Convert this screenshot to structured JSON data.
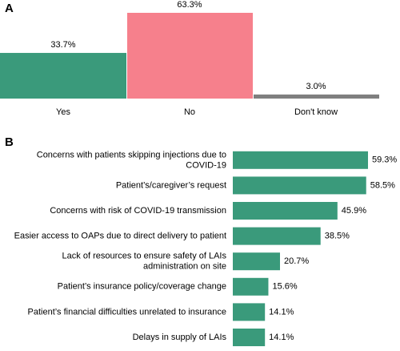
{
  "chart_data": [
    {
      "type": "bar",
      "panel_label": "A",
      "categories": [
        "Yes",
        "No",
        "Don't know"
      ],
      "values": [
        33.7,
        63.3,
        3.0
      ],
      "value_labels": [
        "33.7%",
        "63.3%",
        "3.0%"
      ],
      "colors": [
        "#3a9a7b",
        "#f6808c",
        "#7f7f7f"
      ]
    },
    {
      "type": "hbar",
      "panel_label": "B",
      "categories": [
        "Concerns with patients skipping injections due to\nCOVID-19",
        "Patient’s/caregiver’s request",
        "Concerns with risk of COVID-19 transmission",
        "Easier access to OAPs due to direct delivery to patient",
        "Lack of resources to ensure safety of LAIs\nadministration on site",
        "Patient’s insurance policy/coverage change",
        "Patient’s financial difficulties unrelated to insurance",
        "Delays in supply of LAIs"
      ],
      "values": [
        59.3,
        58.5,
        45.9,
        38.5,
        20.7,
        15.6,
        14.1,
        14.1
      ],
      "value_labels": [
        "59.3%",
        "58.5%",
        "45.9%",
        "38.5%",
        "20.7%",
        "15.6%",
        "14.1%",
        "14.1%"
      ],
      "color": "#3a9a7b"
    }
  ]
}
